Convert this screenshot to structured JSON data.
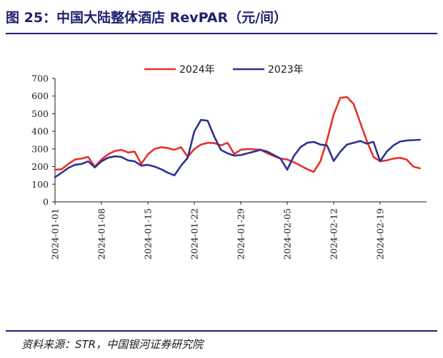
{
  "figure": {
    "title": "图 25：中国大陆整体酒店 RevPAR（元/间）",
    "source": "资料来源：STR，中国银河证券研究院"
  },
  "colors": {
    "title": "#1f1f6e",
    "rule": "#1f1f6e",
    "series_2024": "#e8302a",
    "series_2023": "#2e3192",
    "axis": "#1a1a1a"
  },
  "chart_data": {
    "type": "line",
    "xlabel": "",
    "ylabel": "",
    "ylim": [
      0,
      700
    ],
    "yticks": [
      0,
      100,
      200,
      300,
      400,
      500,
      600,
      700
    ],
    "xlim": [
      "2024-01-01",
      "2024-02-26"
    ],
    "xtick_labels": [
      "2024-01-01",
      "2024-01-08",
      "2024-01-15",
      "2024-01-22",
      "2024-01-29",
      "2024-02-05",
      "2024-02-12",
      "2024-02-19"
    ],
    "grid": false,
    "legend_position": "top-center",
    "x": [
      "2024-01-01",
      "2024-01-02",
      "2024-01-03",
      "2024-01-04",
      "2024-01-05",
      "2024-01-06",
      "2024-01-07",
      "2024-01-08",
      "2024-01-09",
      "2024-01-10",
      "2024-01-11",
      "2024-01-12",
      "2024-01-13",
      "2024-01-14",
      "2024-01-15",
      "2024-01-16",
      "2024-01-17",
      "2024-01-18",
      "2024-01-19",
      "2024-01-20",
      "2024-01-21",
      "2024-01-22",
      "2024-01-23",
      "2024-01-24",
      "2024-01-25",
      "2024-01-26",
      "2024-01-27",
      "2024-01-28",
      "2024-01-29",
      "2024-01-30",
      "2024-01-31",
      "2024-02-01",
      "2024-02-02",
      "2024-02-03",
      "2024-02-04",
      "2024-02-05",
      "2024-02-06",
      "2024-02-07",
      "2024-02-08",
      "2024-02-09",
      "2024-02-10",
      "2024-02-11",
      "2024-02-12",
      "2024-02-13",
      "2024-02-14",
      "2024-02-15",
      "2024-02-16",
      "2024-02-17",
      "2024-02-18",
      "2024-02-19",
      "2024-02-20",
      "2024-02-21",
      "2024-02-22",
      "2024-02-23",
      "2024-02-24",
      "2024-02-25"
    ],
    "series": [
      {
        "name": "2024年",
        "color": "#e8302a",
        "values": [
          182,
          185,
          215,
          240,
          245,
          255,
          200,
          240,
          270,
          288,
          295,
          280,
          285,
          215,
          270,
          300,
          310,
          305,
          295,
          310,
          255,
          300,
          325,
          335,
          333,
          320,
          335,
          272,
          295,
          300,
          298,
          295,
          275,
          260,
          245,
          240,
          225,
          205,
          185,
          170,
          230,
          350,
          495,
          590,
          595,
          555,
          450,
          345,
          255,
          230,
          235,
          245,
          250,
          240,
          200,
          190
        ]
      },
      {
        "name": "2023年",
        "color": "#2e3192",
        "values": [
          140,
          165,
          192,
          210,
          215,
          230,
          195,
          230,
          250,
          258,
          255,
          235,
          230,
          205,
          210,
          200,
          185,
          165,
          150,
          205,
          250,
          400,
          465,
          460,
          370,
          295,
          275,
          262,
          265,
          275,
          285,
          295,
          285,
          265,
          245,
          182,
          260,
          310,
          335,
          340,
          325,
          320,
          232,
          285,
          325,
          335,
          345,
          330,
          340,
          230,
          285,
          320,
          342,
          348,
          350,
          352
        ]
      }
    ]
  }
}
